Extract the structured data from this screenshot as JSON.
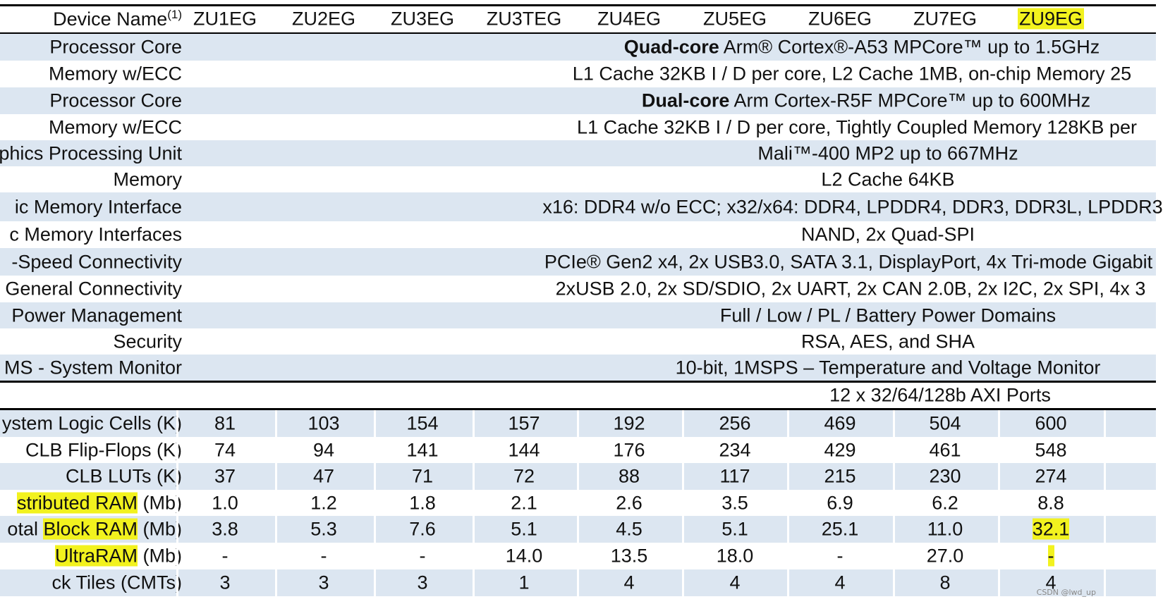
{
  "header": {
    "label": "Device Name",
    "label_sup": "(1)",
    "devices": [
      "ZU1EG",
      "ZU2EG",
      "ZU3EG",
      "ZU3TEG",
      "ZU4EG",
      "ZU5EG",
      "ZU6EG",
      "ZU7EG",
      "ZU9EG"
    ],
    "highlighted_device": "ZU9EG"
  },
  "ps_rows": [
    {
      "label": "Processor Core",
      "bold": "Quad-core",
      "value": " Arm® Cortex®-A53 MPCore™ up to 1.5GHz",
      "shade": true,
      "center": 1222
    },
    {
      "label": "Memory w/ECC",
      "bold": "",
      "value": "L1 Cache 32KB I / D per core, L2 Cache 1MB, on-chip Memory 25",
      "shade": false,
      "center": 1208
    },
    {
      "label": "Processor Core",
      "bold": "Dual-core",
      "value": " Arm Cortex-R5F MPCore™ up to 600MHz",
      "shade": true,
      "center": 1228
    },
    {
      "label": "Memory w/ECC",
      "bold": "",
      "value": "L1 Cache 32KB I / D per core, Tightly Coupled Memory 128KB per",
      "shade": false,
      "center": 1215
    },
    {
      "label": "phics Processing Unit",
      "bold": "",
      "value": "Mali™-400 MP2 up to 667MHz",
      "shade": true,
      "center": 1259
    },
    {
      "label": "Memory",
      "bold": "",
      "value": "L2 Cache 64KB",
      "shade": false,
      "center": 1259
    },
    {
      "label": "ic Memory Interface",
      "bold": "",
      "value": "x16: DDR4 w/o ECC; x32/x64: DDR4, LPDDR4, DDR3, DDR3L, LPDDR3",
      "shade": true,
      "center": 1209
    },
    {
      "label": "c Memory Interfaces",
      "bold": "",
      "value": "NAND, 2x Quad-SPI",
      "shade": false,
      "center": 1259
    },
    {
      "label": "-Speed Connectivity",
      "bold": "",
      "value": "PCIe® Gen2 x4, 2x USB3.0, SATA 3.1, DisplayPort, 4x Tri-mode Gigabit",
      "shade": true,
      "center": 1203
    },
    {
      "label": "General Connectivity",
      "bold": "",
      "value": "2xUSB 2.0, 2x SD/SDIO,  2x UART, 2x CAN 2.0B,  2x I2C,  2x SPI,  4x 3",
      "shade": false,
      "center": 1206
    },
    {
      "label": "Power Management",
      "bold": "",
      "value": "Full / Low / PL / Battery Power Domains",
      "shade": true,
      "center": 1259
    },
    {
      "label": "Security",
      "bold": "",
      "value": "RSA, AES, and SHA",
      "shade": false,
      "center": 1259
    },
    {
      "label": "MS - System Monitor",
      "bold": "",
      "value": "10-bit, 1MSPS – Temperature and Voltage Monitor",
      "shade": true,
      "center": 1259
    }
  ],
  "axi_row": {
    "label": "",
    "value": "12  x 32/64/128b AXI Ports",
    "center": 1333
  },
  "pl_rows": [
    {
      "label_parts": [
        {
          "t": "ystem Logic Cells (K)",
          "hl": false
        }
      ],
      "values": [
        "81",
        "103",
        "154",
        "157",
        "192",
        "256",
        "469",
        "504",
        "600"
      ],
      "shade": true
    },
    {
      "label_parts": [
        {
          "t": "CLB Flip-Flops (K)",
          "hl": false
        }
      ],
      "values": [
        "74",
        "94",
        "141",
        "144",
        "176",
        "234",
        "429",
        "461",
        "548"
      ],
      "shade": false
    },
    {
      "label_parts": [
        {
          "t": "CLB LUTs (K)",
          "hl": false
        }
      ],
      "values": [
        "37",
        "47",
        "71",
        "72",
        "88",
        "117",
        "215",
        "230",
        "274"
      ],
      "shade": true
    },
    {
      "label_parts": [
        {
          "t": "stributed RAM",
          "hl": true
        },
        {
          "t": " (Mb)",
          "hl": false
        }
      ],
      "values": [
        "1.0",
        "1.2",
        "1.8",
        "2.1",
        "2.6",
        "3.5",
        "6.9",
        "6.2",
        "8.8"
      ],
      "shade": false
    },
    {
      "label_parts": [
        {
          "t": "otal ",
          "hl": false
        },
        {
          "t": "Block RAM",
          "hl": true
        },
        {
          "t": " (Mb)",
          "hl": false
        }
      ],
      "values": [
        "3.8",
        "5.3",
        "7.6",
        "5.1",
        "4.5",
        "5.1",
        "25.1",
        "11.0",
        "32.1"
      ],
      "shade": true,
      "hl_last": true
    },
    {
      "label_parts": [
        {
          "t": "UltraRAM",
          "hl": true
        },
        {
          "t": " (Mb)",
          "hl": false
        }
      ],
      "values": [
        "-",
        "-",
        "-",
        "14.0",
        "13.5",
        "18.0",
        "-",
        "27.0",
        "-"
      ],
      "shade": false,
      "hl_last": true
    },
    {
      "label_parts": [
        {
          "t": "ck Tiles (CMTs)",
          "hl": false
        }
      ],
      "values": [
        "3",
        "3",
        "3",
        "1",
        "4",
        "4",
        "4",
        "8",
        "4"
      ],
      "shade": true
    }
  ],
  "watermark": "CSDN @lwd_up",
  "colors": {
    "shade": "#dce6f1",
    "highlight": "#f2f21e",
    "rule": "#000000"
  }
}
